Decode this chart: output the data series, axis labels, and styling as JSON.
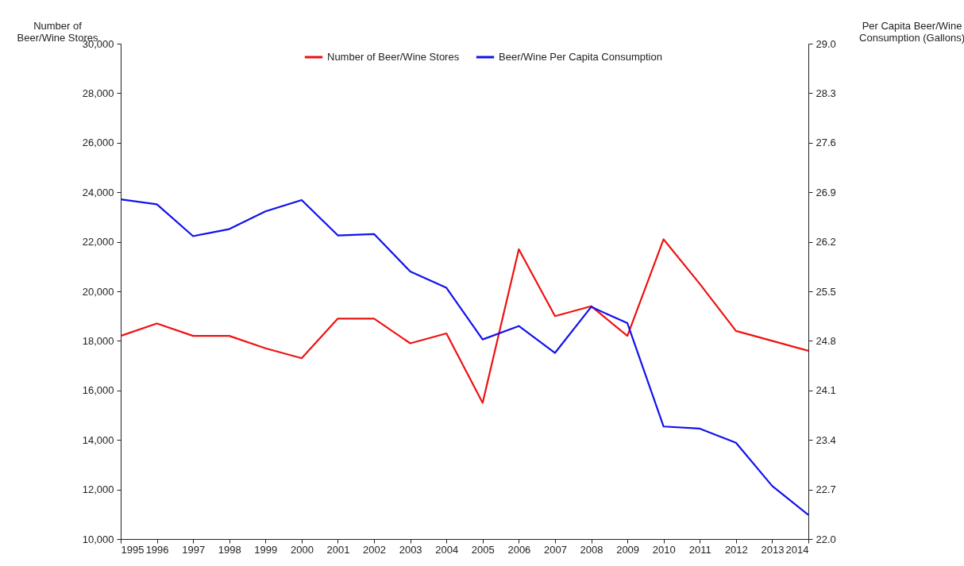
{
  "chart_data": {
    "type": "line",
    "ylabel": "Number of Beer/Wine Stores",
    "y2label": "Per Capita Beer/Wine Consumption (Gallons)",
    "categories": [
      "1995",
      "1996",
      "1997",
      "1998",
      "1999",
      "2000",
      "2001",
      "2002",
      "2003",
      "2004",
      "2005",
      "2006",
      "2007",
      "2008",
      "2009",
      "2010",
      "2011",
      "2012",
      "2013",
      "2014"
    ],
    "series": [
      {
        "name": "Number of Beer/Wine Stores",
        "color": "#ee1111",
        "values": [
          18200,
          18700,
          18200,
          18200,
          17700,
          17300,
          18900,
          18900,
          17900,
          18300,
          15500,
          21700,
          19000,
          19400,
          18200,
          22100,
          20300,
          18400,
          18000,
          17600
        ]
      },
      {
        "name": "Beer/Wine Per Capita Consumption",
        "color": "#1111ee",
        "axis": "y2",
        "values": [
          26.8,
          26.73,
          26.28,
          26.38,
          26.63,
          26.79,
          26.29,
          26.31,
          25.78,
          25.55,
          24.82,
          25.01,
          24.63,
          25.28,
          25.05,
          23.59,
          23.56,
          23.36,
          22.75,
          22.34
        ]
      }
    ],
    "ylim": [
      10000,
      30000
    ],
    "yticks": [
      {
        "value": 10000,
        "label": "10,000"
      },
      {
        "value": 12000,
        "label": "12,000"
      },
      {
        "value": 14000,
        "label": "14,000"
      },
      {
        "value": 16000,
        "label": "16,000"
      },
      {
        "value": 18000,
        "label": "18,000"
      },
      {
        "value": 20000,
        "label": "20,000"
      },
      {
        "value": 22000,
        "label": "22,000"
      },
      {
        "value": 24000,
        "label": "24,000"
      },
      {
        "value": 26000,
        "label": "26,000"
      },
      {
        "value": 28000,
        "label": "28,000"
      },
      {
        "value": 30000,
        "label": "30,000"
      }
    ],
    "y2lim": [
      22,
      29
    ],
    "y2ticks": [
      {
        "value": 22,
        "label": "22.0"
      },
      22.7,
      23.4,
      24.1,
      24.8,
      25.5,
      26.2,
      26.9,
      27.6,
      28.3,
      {
        "value": 29,
        "label": "29.0"
      }
    ],
    "legend": "top"
  }
}
